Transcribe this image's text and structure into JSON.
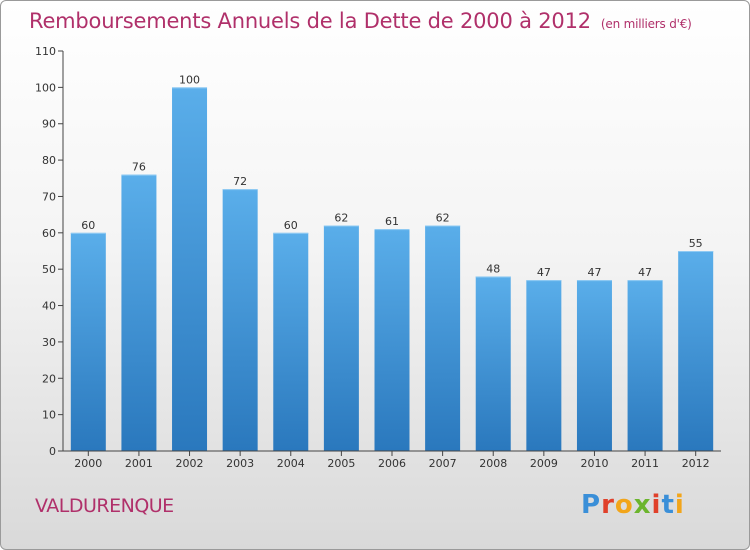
{
  "header": {
    "title": "Remboursements Annuels de la Dette de 2000 à 2012",
    "subtitle": "(en milliers d'€)"
  },
  "footer": {
    "commune": "VALDURENQUE",
    "brand": "Proxiti"
  },
  "colors": {
    "title": "#b0306a",
    "bar_top": "#5aaeea",
    "bar_bottom": "#2a78bd"
  },
  "chart_data": {
    "type": "bar",
    "title": "Remboursements Annuels de la Dette de 2000 à 2012",
    "subtitle": "(en milliers d'€)",
    "categories": [
      "2000",
      "2001",
      "2002",
      "2003",
      "2004",
      "2005",
      "2006",
      "2007",
      "2008",
      "2009",
      "2010",
      "2011",
      "2012"
    ],
    "values": [
      60,
      76,
      100,
      72,
      60,
      62,
      61,
      62,
      48,
      47,
      47,
      47,
      55
    ],
    "data_labels": [
      "60",
      "76",
      "100",
      "72",
      "60",
      "62",
      "61",
      "62",
      "48",
      "47",
      "47",
      "47",
      "55"
    ],
    "ylim": [
      0,
      110
    ],
    "yticks": [
      0,
      10,
      20,
      30,
      40,
      50,
      60,
      70,
      80,
      90,
      100,
      110
    ],
    "grid": false,
    "legend": "none"
  }
}
